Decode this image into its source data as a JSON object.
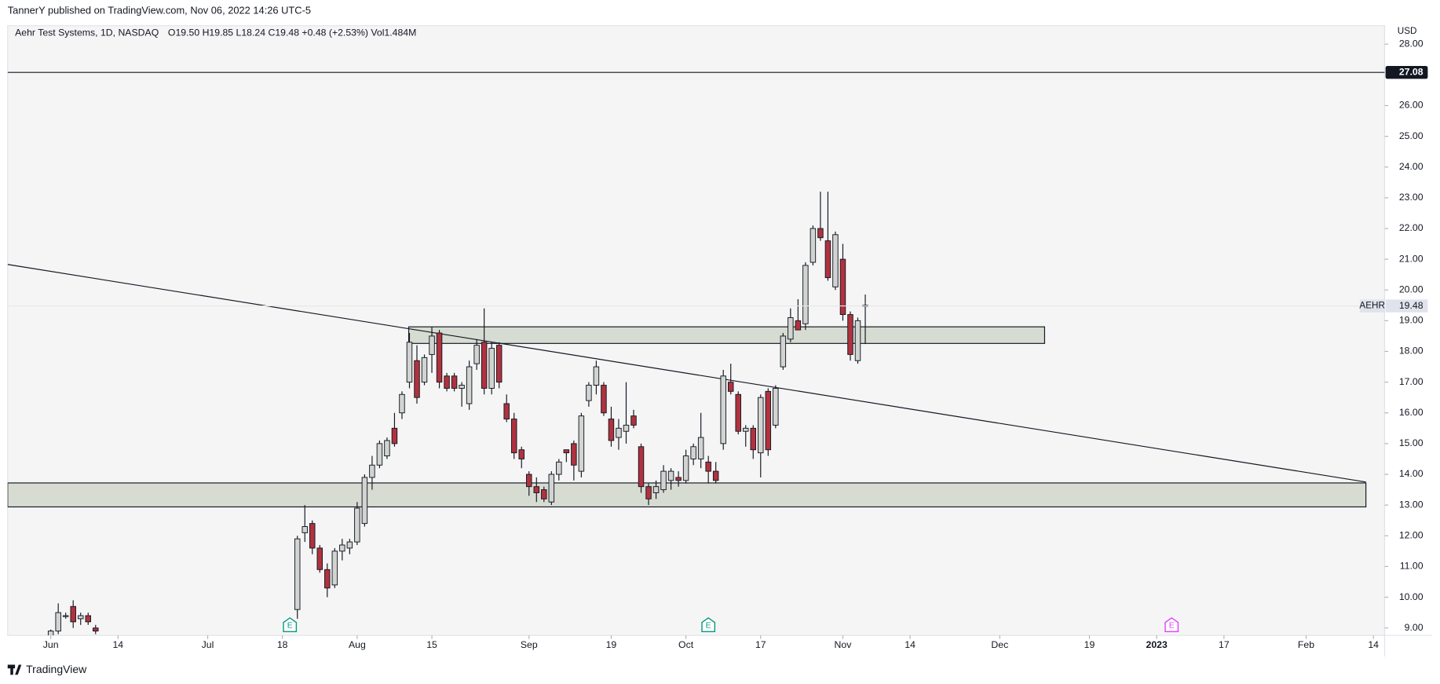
{
  "header": "TannerY published on TradingView.com, Nov 06, 2022 14:26 UTC-5",
  "footer": "TradingView",
  "chart_data": {
    "type": "candlestick",
    "title": "Aehr Test Systems, 1D, NASDAQ",
    "ohlc_label": "O19.50 H19.85 L18.24 C19.48 +0.48 (+2.53%) Vol1.484M",
    "y_unit": "USD",
    "up_color": "#d1d4d0",
    "down_color": "#b0323e",
    "grid": false,
    "x": [
      0,
      1,
      2,
      3,
      4,
      5,
      6,
      33,
      34,
      35,
      36,
      37,
      38,
      39,
      40,
      41,
      42,
      43,
      44,
      45,
      46,
      47,
      48,
      49,
      50,
      51,
      52,
      53,
      54,
      55,
      56,
      57,
      58,
      59,
      60,
      61,
      62,
      63,
      64,
      65,
      66,
      67,
      68,
      69,
      70,
      71,
      72,
      73,
      74,
      75,
      76,
      77,
      78,
      79,
      80,
      81,
      82,
      83,
      84,
      85,
      86,
      87,
      88,
      89,
      90,
      91,
      92,
      93,
      94,
      95,
      96,
      97,
      98,
      99,
      100,
      101,
      102,
      103,
      104,
      105,
      106,
      107,
      108,
      109
    ],
    "open": [
      8.7,
      8.9,
      9.4,
      9.7,
      9.3,
      9.4,
      9.0,
      9.6,
      12.1,
      12.4,
      11.6,
      10.9,
      10.4,
      11.5,
      11.6,
      11.8,
      12.4,
      13.9,
      14.3,
      14.6,
      15.5,
      16.0,
      17.0,
      17.7,
      17.0,
      17.9,
      18.6,
      17.2,
      17.2,
      16.8,
      16.3,
      17.6,
      18.3,
      16.8,
      18.2,
      16.3,
      15.8,
      14.8,
      14.0,
      13.6,
      13.5,
      13.1,
      14.0,
      14.8,
      15.0,
      14.1,
      16.4,
      16.9,
      16.9,
      15.8,
      15.2,
      15.4,
      15.9,
      14.9,
      13.6,
      13.4,
      13.5,
      13.8,
      13.9,
      13.8,
      14.5,
      14.5,
      14.4,
      14.1,
      15.0,
      17.0,
      16.6,
      15.4,
      15.5,
      14.7,
      16.7,
      15.6,
      17.5,
      18.4,
      19.0,
      18.9,
      20.9,
      22.0,
      21.6,
      20.1,
      21.0,
      19.2,
      17.7,
      19.5
    ],
    "high": [
      8.95,
      9.8,
      9.5,
      9.9,
      9.5,
      9.5,
      9.1,
      12.0,
      13.0,
      12.5,
      11.7,
      11.1,
      11.6,
      11.9,
      11.9,
      13.1,
      14.0,
      14.6,
      15.1,
      15.2,
      16.0,
      16.7,
      18.6,
      18.2,
      17.9,
      18.8,
      18.7,
      17.3,
      17.3,
      17.0,
      17.7,
      18.4,
      19.4,
      18.3,
      18.3,
      16.6,
      16.0,
      14.9,
      14.1,
      13.9,
      13.6,
      14.1,
      14.5,
      14.8,
      15.1,
      16.0,
      17.0,
      17.7,
      17.0,
      16.2,
      15.8,
      17.0,
      16.1,
      15.0,
      13.7,
      13.8,
      14.3,
      14.2,
      14.1,
      14.8,
      15.0,
      16.0,
      14.6,
      14.4,
      17.4,
      17.6,
      16.7,
      15.6,
      15.6,
      16.6,
      16.8,
      16.9,
      18.6,
      19.4,
      19.7,
      20.9,
      22.1,
      23.2,
      23.2,
      21.9,
      21.5,
      19.3,
      19.1,
      19.85
    ],
    "low": [
      8.5,
      8.8,
      9.3,
      9.0,
      9.1,
      9.1,
      8.8,
      9.3,
      11.8,
      11.4,
      10.8,
      10.0,
      10.3,
      11.2,
      11.4,
      11.7,
      12.3,
      13.5,
      14.2,
      14.5,
      14.9,
      15.8,
      16.8,
      16.3,
      16.9,
      17.3,
      16.8,
      16.7,
      16.7,
      16.2,
      16.1,
      17.4,
      16.6,
      16.6,
      16.8,
      15.7,
      14.5,
      14.2,
      13.3,
      13.1,
      13.1,
      13.0,
      13.8,
      14.4,
      13.8,
      13.9,
      16.2,
      16.6,
      15.9,
      14.9,
      14.8,
      15.0,
      15.5,
      13.4,
      13.0,
      13.2,
      13.4,
      13.5,
      13.6,
      13.7,
      14.3,
      14.2,
      13.7,
      13.7,
      14.8,
      16.6,
      15.3,
      14.9,
      14.5,
      13.9,
      14.6,
      15.5,
      17.4,
      18.3,
      18.7,
      18.7,
      20.8,
      21.6,
      20.3,
      20.0,
      19.0,
      17.7,
      17.6,
      18.24
    ],
    "close": [
      8.9,
      9.5,
      9.4,
      9.2,
      9.4,
      9.2,
      8.9,
      11.9,
      12.3,
      11.6,
      10.9,
      10.3,
      11.5,
      11.7,
      11.8,
      12.9,
      13.9,
      14.3,
      15.0,
      15.1,
      15.0,
      16.6,
      18.3,
      16.5,
      17.8,
      18.5,
      17.0,
      16.8,
      16.8,
      16.9,
      17.5,
      18.2,
      16.8,
      18.1,
      17.0,
      15.8,
      14.7,
      14.5,
      13.6,
      13.4,
      13.2,
      14.0,
      14.4,
      14.7,
      14.3,
      15.9,
      16.9,
      17.5,
      16.0,
      15.1,
      15.5,
      15.6,
      15.6,
      13.6,
      13.2,
      13.6,
      14.1,
      14.1,
      13.8,
      14.6,
      14.9,
      15.2,
      14.1,
      13.8,
      17.2,
      16.7,
      15.4,
      15.5,
      14.8,
      16.5,
      14.8,
      16.8,
      18.5,
      19.1,
      18.7,
      20.8,
      22.0,
      21.7,
      20.4,
      21.8,
      19.2,
      17.9,
      19.0,
      19.48
    ],
    "xlim": [
      -5.77,
      178.5
    ],
    "xticks": [
      {
        "value": 0,
        "label": "Jun"
      },
      {
        "value": 9,
        "label": "14"
      },
      {
        "value": 21,
        "label": "Jul"
      },
      {
        "value": 31,
        "label": "18"
      },
      {
        "value": 41,
        "label": "Aug"
      },
      {
        "value": 51,
        "label": "15"
      },
      {
        "value": 64,
        "label": "Sep"
      },
      {
        "value": 75,
        "label": "19"
      },
      {
        "value": 85,
        "label": "Oct"
      },
      {
        "value": 95,
        "label": "17"
      },
      {
        "value": 106,
        "label": "Nov"
      },
      {
        "value": 115,
        "label": "14"
      },
      {
        "value": 127,
        "label": "Dec"
      },
      {
        "value": 139,
        "label": "19"
      },
      {
        "value": 148,
        "label": "2023"
      },
      {
        "value": 157,
        "label": "17"
      },
      {
        "value": 168,
        "label": "Feb"
      },
      {
        "value": 177,
        "label": "14"
      }
    ],
    "ylim": [
      8.76,
      28.6
    ],
    "yticks": [
      {
        "value": 9,
        "label": "9.00"
      },
      {
        "value": 10,
        "label": "10.00"
      },
      {
        "value": 11,
        "label": "11.00"
      },
      {
        "value": 12,
        "label": "12.00"
      },
      {
        "value": 13,
        "label": "13.00"
      },
      {
        "value": 14,
        "label": "14.00"
      },
      {
        "value": 15,
        "label": "15.00"
      },
      {
        "value": 16,
        "label": "16.00"
      },
      {
        "value": 17,
        "label": "17.00"
      },
      {
        "value": 18,
        "label": "18.00"
      },
      {
        "value": 19,
        "label": "19.00"
      },
      {
        "value": 20,
        "label": "20.00"
      },
      {
        "value": 21,
        "label": "21.00"
      },
      {
        "value": 22,
        "label": "22.00"
      },
      {
        "value": 23,
        "label": "23.00"
      },
      {
        "value": 24,
        "label": "24.00"
      },
      {
        "value": 25,
        "label": "25.00"
      },
      {
        "value": 26,
        "label": "26.00"
      },
      {
        "value": 28,
        "label": "28.00"
      }
    ],
    "hline": 27.08,
    "last_price": {
      "symbol": "AEHR",
      "value": 19.48
    },
    "zones": [
      {
        "x0": 47.9,
        "x1": 133,
        "low": 18.26,
        "high": 18.8,
        "color": "#d7dcd2"
      },
      {
        "x0": -5.77,
        "x1": 176,
        "low": 12.94,
        "high": 13.72,
        "color": "#d7dcd2"
      }
    ],
    "trendline": {
      "x": [
        -5.77,
        176
      ],
      "y": [
        20.83,
        13.75
      ]
    },
    "events": [
      {
        "x": 32,
        "label": "E",
        "color": "#089981"
      },
      {
        "x": 88,
        "label": "E",
        "color": "#089981"
      },
      {
        "x": 150,
        "label": "E",
        "color": "#e040fb"
      }
    ]
  }
}
